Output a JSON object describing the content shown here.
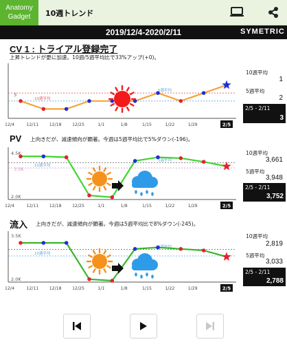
{
  "header": {
    "logo_line1": "Anatomy",
    "logo_line2": "Gadget",
    "title": "10週トレンド",
    "tv_icon": "tv-icon",
    "share_icon": "share-icon",
    "accent": "#5cb42f"
  },
  "datebar": {
    "range": "2019/12/4-2020/2/11",
    "brand": "SYMETRIC"
  },
  "x_labels": [
    "12/4",
    "12/11",
    "12/18",
    "12/25",
    "1/1",
    "1/8",
    "1/15",
    "1/22",
    "1/29",
    "2/5"
  ],
  "current_label": "2/5",
  "sections": [
    {
      "title": "CV 1 : トライアル登録完了",
      "note": "上昇トレンドが更に加速。10週/5週平均比で33%アップ(+0)。",
      "weather": "sunny",
      "y_top_label": "",
      "y_bottom_label": "",
      "ref_label": "3",
      "avg10_label": "10週平均",
      "avg5_label": "5週平均",
      "side": {
        "avg10_title": "10週平均",
        "avg10_value": "1",
        "avg5_title": "5週平均",
        "avg5_value": "2",
        "period": "2/5 - 2/11",
        "current": "3"
      }
    },
    {
      "title": "PV",
      "note": "上向きだが、減速傾向が顕著。今週は5週平均比で5%ダウン(-196)。",
      "weather": "sunny-to-rainy",
      "y_top_label": "4.5K",
      "y_bottom_label": "2.0K",
      "ref_label": "3.5K",
      "avg10_label": "10週平均",
      "avg5_label": "5週平均",
      "side": {
        "avg10_title": "10週平均",
        "avg10_value": "3,661",
        "avg5_title": "5週平均",
        "avg5_value": "3,948",
        "period": "2/5 - 2/11",
        "current": "3,752"
      }
    },
    {
      "title": "流入",
      "note": "上向きだが、減速傾向が顕著。今週は5週平均比で8%ダウン(-245)。",
      "weather": "sunny-to-rainy",
      "y_top_label": "3.5K",
      "y_bottom_label": "2.0K",
      "ref_label": "",
      "avg10_label": "10週平均",
      "avg5_label": "5週平均",
      "side": {
        "avg10_title": "10週平均",
        "avg10_value": "2,819",
        "avg5_title": "5週平均",
        "avg5_value": "3,033",
        "period": "2/5 - 2/11",
        "current": "2,788"
      }
    }
  ],
  "chart_data": [
    {
      "type": "line",
      "title": "CV 1 : トライアル登録完了",
      "x": [
        "12/4",
        "12/11",
        "12/18",
        "12/25",
        "1/1",
        "1/8",
        "1/15",
        "1/22",
        "1/29",
        "2/5"
      ],
      "series": [
        {
          "values": [
            1,
            0,
            0,
            1,
            1,
            1,
            2,
            1,
            2,
            3
          ]
        }
      ],
      "avg10": 1,
      "avg5": 2,
      "line_color": "#f5a33a"
    },
    {
      "type": "line",
      "title": "PV",
      "x": [
        "12/4",
        "12/11",
        "12/18",
        "12/25",
        "1/1",
        "1/8",
        "1/15",
        "1/22",
        "1/29",
        "2/5"
      ],
      "series": [
        {
          "values": [
            4300,
            4300,
            4250,
            2150,
            2050,
            4050,
            4250,
            4200,
            4000,
            3752
          ]
        }
      ],
      "avg10": 3661,
      "avg5": 3948,
      "ylim": [
        2000,
        4500
      ],
      "line_color": "#3ed62e"
    },
    {
      "type": "line",
      "title": "流入",
      "x": [
        "12/4",
        "12/11",
        "12/18",
        "12/25",
        "1/1",
        "1/8",
        "1/15",
        "1/22",
        "1/29",
        "2/5"
      ],
      "series": [
        {
          "values": [
            3250,
            3250,
            3250,
            2050,
            2000,
            3050,
            3100,
            3050,
            3000,
            2788
          ]
        }
      ],
      "avg10": 2819,
      "avg5": 3033,
      "ylim": [
        2000,
        3500
      ],
      "line_color": "#3ab42a"
    }
  ],
  "controls": {
    "first_icon": "skip-back-icon",
    "play_icon": "play-icon",
    "last_icon": "skip-forward-icon"
  }
}
